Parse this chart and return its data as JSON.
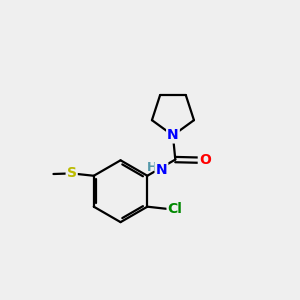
{
  "bg_color": "#efefef",
  "bond_color": "#000000",
  "bond_width": 1.6,
  "atom_colors": {
    "N": "#0000ff",
    "O": "#ff0000",
    "S": "#bbbb00",
    "Cl": "#008800",
    "C": "#000000",
    "H": "#5599aa"
  },
  "font_size_atom": 10,
  "font_size_small": 9,
  "font_size_cl": 10
}
